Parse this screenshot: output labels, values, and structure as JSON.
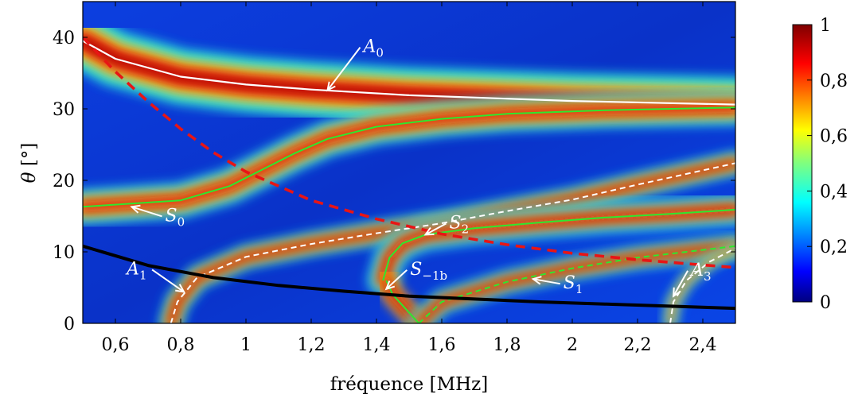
{
  "chart_data": {
    "type": "heatmap",
    "title": "",
    "xlabel": "fréquence [MHz]",
    "ylabel_symbol": "θ",
    "ylabel_unit": "[°]",
    "xlim": [
      0.5,
      2.5
    ],
    "ylim": [
      0,
      45
    ],
    "xticks": [
      0.6,
      0.8,
      1,
      1.2,
      1.4,
      1.6,
      1.8,
      2,
      2.2,
      2.4
    ],
    "xtick_labels": [
      "0,6",
      "0,8",
      "1",
      "1,2",
      "1,4",
      "1,6",
      "1,8",
      "2",
      "2,2",
      "2,4"
    ],
    "yticks": [
      0,
      10,
      20,
      30,
      40
    ],
    "ytick_labels": [
      "0",
      "10",
      "20",
      "30",
      "40"
    ],
    "colorbar": {
      "range": [
        0,
        1
      ],
      "ticks": [
        0,
        0.2,
        0.4,
        0.6,
        0.8,
        1
      ],
      "tick_labels": [
        "0",
        "0,2",
        "0,4",
        "0,6",
        "0,8",
        "1"
      ],
      "colormap": "jet"
    },
    "curves": [
      {
        "id": "A0",
        "style": "white solid",
        "points": [
          [
            0.5,
            39.5
          ],
          [
            0.6,
            37.0
          ],
          [
            0.8,
            34.5
          ],
          [
            1.0,
            33.4
          ],
          [
            1.2,
            32.7
          ],
          [
            1.5,
            31.9
          ],
          [
            2.0,
            31.1
          ],
          [
            2.5,
            30.6
          ]
        ]
      },
      {
        "id": "S0",
        "style": "green solid",
        "points": [
          [
            0.5,
            16.3
          ],
          [
            0.8,
            17.2
          ],
          [
            0.95,
            19.2
          ],
          [
            1.05,
            21.5
          ],
          [
            1.15,
            23.8
          ],
          [
            1.25,
            25.8
          ],
          [
            1.4,
            27.5
          ],
          [
            1.6,
            28.6
          ],
          [
            1.8,
            29.3
          ],
          [
            2.1,
            29.8
          ],
          [
            2.5,
            30.2
          ]
        ]
      },
      {
        "id": "S2",
        "style": "green solid",
        "points": [
          [
            1.42,
            6.0
          ],
          [
            1.44,
            9.2
          ],
          [
            1.48,
            11.2
          ],
          [
            1.55,
            12.4
          ],
          [
            1.7,
            13.3
          ],
          [
            1.9,
            14.1
          ],
          [
            2.1,
            14.8
          ],
          [
            2.3,
            15.3
          ],
          [
            2.5,
            15.9
          ]
        ]
      },
      {
        "id": "S-1b",
        "style": "green solid",
        "points": [
          [
            1.53,
            0.0
          ],
          [
            1.49,
            2.0
          ],
          [
            1.45,
            4.0
          ],
          [
            1.43,
            6.0
          ]
        ]
      },
      {
        "id": "S1",
        "style": "green dashed",
        "points": [
          [
            1.53,
            0.0
          ],
          [
            1.6,
            3.0
          ],
          [
            1.8,
            5.8
          ],
          [
            2.0,
            7.7
          ],
          [
            2.2,
            9.2
          ],
          [
            2.5,
            10.8
          ]
        ]
      },
      {
        "id": "A1",
        "style": "white dashed",
        "points": [
          [
            0.77,
            0.0
          ],
          [
            0.79,
            3.0
          ],
          [
            0.85,
            6.4
          ],
          [
            1.0,
            9.3
          ],
          [
            1.2,
            11.1
          ],
          [
            1.4,
            12.6
          ],
          [
            1.6,
            14.0
          ],
          [
            1.8,
            15.7
          ],
          [
            2.0,
            17.3
          ],
          [
            2.2,
            19.4
          ],
          [
            2.5,
            22.4
          ]
        ]
      },
      {
        "id": "A3",
        "style": "white dashed",
        "points": [
          [
            2.3,
            0.0
          ],
          [
            2.31,
            3.0
          ],
          [
            2.35,
            6.0
          ],
          [
            2.42,
            8.6
          ],
          [
            2.5,
            10.5
          ]
        ]
      },
      {
        "id": "red-dashed",
        "style": "red dashed",
        "points": [
          [
            0.5,
            40.0
          ],
          [
            0.6,
            35.2
          ],
          [
            0.7,
            31.0
          ],
          [
            0.8,
            27.2
          ],
          [
            0.9,
            23.9
          ],
          [
            1.0,
            21.2
          ],
          [
            1.2,
            17.2
          ],
          [
            1.4,
            14.6
          ],
          [
            1.6,
            12.5
          ],
          [
            1.8,
            11.0
          ],
          [
            2.0,
            9.8
          ],
          [
            2.2,
            8.9
          ],
          [
            2.5,
            7.8
          ]
        ]
      },
      {
        "id": "black-solid",
        "style": "black solid",
        "points": [
          [
            0.5,
            10.8
          ],
          [
            0.7,
            8.1
          ],
          [
            0.9,
            6.4
          ],
          [
            1.1,
            5.3
          ],
          [
            1.3,
            4.5
          ],
          [
            1.5,
            3.8
          ],
          [
            1.7,
            3.4
          ],
          [
            1.9,
            3.0
          ],
          [
            2.1,
            2.7
          ],
          [
            2.3,
            2.4
          ],
          [
            2.5,
            2.1
          ]
        ]
      }
    ],
    "annotations": [
      {
        "id": "A0",
        "letter": "A",
        "sub": "0",
        "tip": [
          1.25,
          32.6
        ]
      },
      {
        "id": "S0",
        "letter": "S",
        "sub": "0",
        "tip": [
          0.65,
          16.3
        ]
      },
      {
        "id": "S2",
        "letter": "S",
        "sub": "2",
        "tip": [
          1.55,
          12.4
        ]
      },
      {
        "id": "A1",
        "letter": "A",
        "sub": "1",
        "tip": [
          0.81,
          4.4
        ]
      },
      {
        "id": "S-1b",
        "letter": "S",
        "sub": "−1b",
        "tip": [
          1.43,
          4.8
        ]
      },
      {
        "id": "S1",
        "letter": "S",
        "sub": "1",
        "tip": [
          1.88,
          6.2
        ]
      },
      {
        "id": "A3",
        "letter": "A",
        "sub": "3",
        "tip": [
          2.31,
          3.8
        ]
      }
    ]
  }
}
